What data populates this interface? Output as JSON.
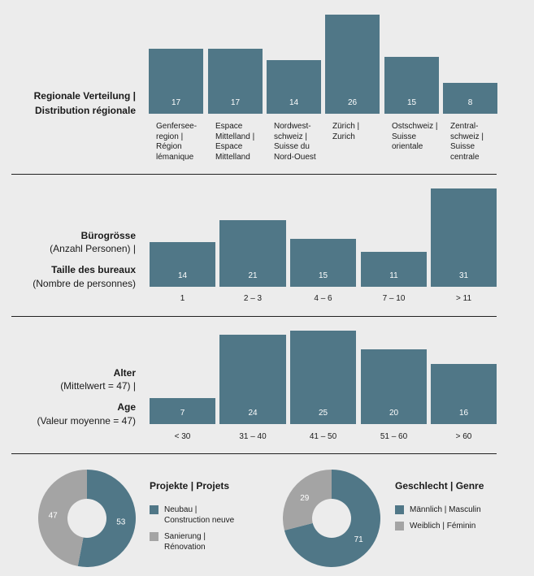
{
  "colors": {
    "primary": "#507787",
    "secondary": "#a4a4a4",
    "background": "#ececec"
  },
  "chart_data": [
    {
      "type": "bar",
      "title_lines": [
        "Regionale Verteilung |",
        "Distribution régionale"
      ],
      "categories": [
        [
          "Genfersee-",
          "region |",
          "Région",
          "lémanique"
        ],
        [
          "Espace",
          "Mittelland |",
          "Espace",
          "Mittelland"
        ],
        [
          "Nordwest-",
          "schweiz |",
          "Suisse du",
          "Nord-Ouest"
        ],
        [
          "Zürich |",
          "Zurich"
        ],
        [
          "Ostschweiz |",
          "Suisse",
          "orientale"
        ],
        [
          "Zentral-",
          "schweiz |",
          "Suisse",
          "centrale"
        ]
      ],
      "values": [
        17,
        17,
        14,
        26,
        15,
        8
      ]
    },
    {
      "type": "bar",
      "title_lines": [
        "Bürogrösse",
        "(Anzahl Personen) |",
        "Taille des bureaux",
        "(Nombre de personnes)"
      ],
      "categories": [
        "1",
        "2 – 3",
        "4 – 6",
        "7 – 10",
        "> 11"
      ],
      "values": [
        14,
        21,
        15,
        11,
        31
      ]
    },
    {
      "type": "bar",
      "title_lines": [
        "Alter",
        "(Mittelwert = 47) |",
        "Age",
        "(Valeur moyenne = 47)"
      ],
      "categories": [
        "< 30",
        "31 – 40",
        "41 – 50",
        "51 – 60",
        "> 60"
      ],
      "values": [
        7,
        24,
        25,
        20,
        16
      ]
    },
    {
      "type": "pie",
      "title": "Projekte | Projets",
      "slices": [
        {
          "label_lines": [
            "Neubau |",
            "Construction neuve"
          ],
          "value": 53,
          "color": "#507787"
        },
        {
          "label_lines": [
            "Sanierung |",
            "Rénovation"
          ],
          "value": 47,
          "color": "#a4a4a4"
        }
      ]
    },
    {
      "type": "pie",
      "title": "Geschlecht | Genre",
      "slices": [
        {
          "label_lines": [
            "Männlich | Masculin"
          ],
          "value": 71,
          "color": "#507787"
        },
        {
          "label_lines": [
            "Weiblich | Féminin"
          ],
          "value": 29,
          "color": "#a4a4a4"
        }
      ]
    }
  ]
}
